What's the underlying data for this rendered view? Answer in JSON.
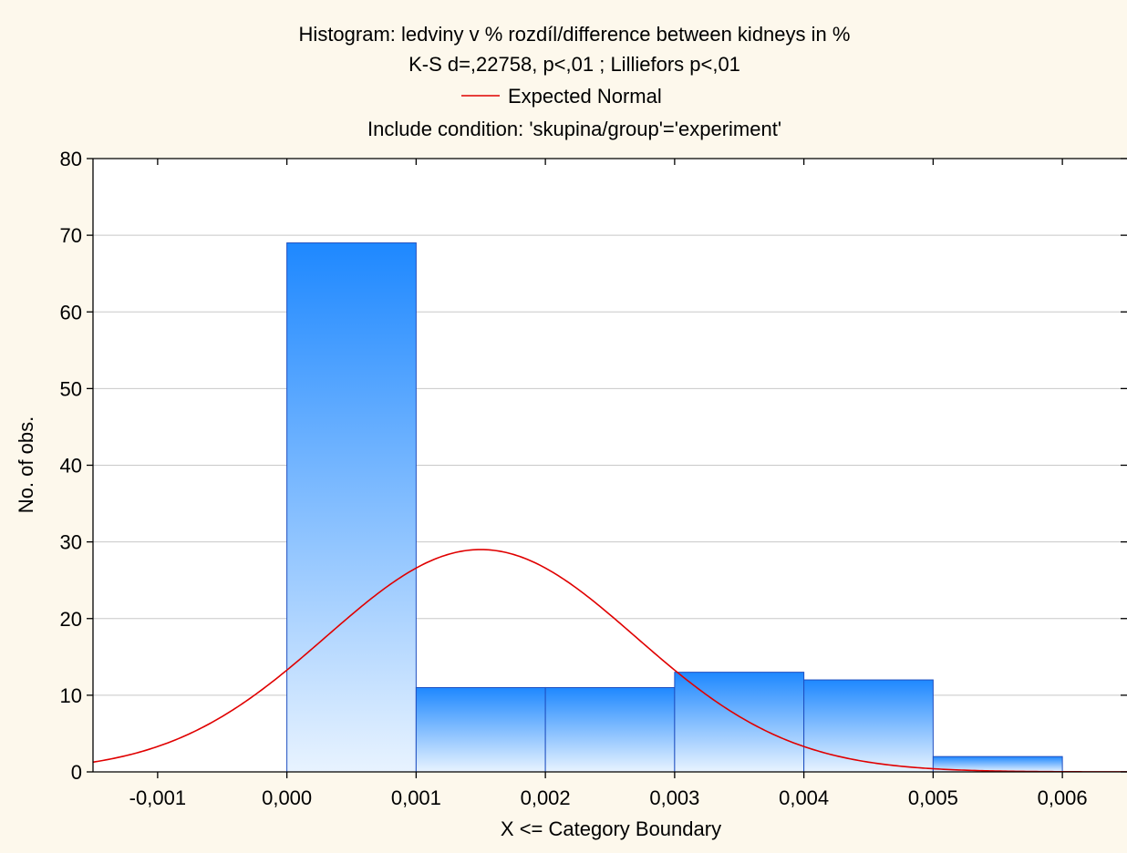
{
  "colors": {
    "background": "#fdf8ec",
    "plot_background": "#ffffff",
    "bar_top": "#1e88ff",
    "bar_bottom": "#e8f3ff",
    "bar_stroke": "#1f4fc0",
    "normal_curve": "#e00000",
    "grid": "#c8c8c8"
  },
  "chart_data": {
    "type": "bar",
    "title_lines": [
      "Histogram: ledviny v % rozdíl/difference between kidneys in %",
      "K-S d=,22758, p<,01 ; Lilliefors p<,01"
    ],
    "legend_label": "Expected Normal",
    "condition": "Include condition: 'skupina/group'='experiment'",
    "xlabel": "X <= Category Boundary",
    "ylabel": "No. of obs.",
    "xlim": [
      -0.0015,
      0.0065
    ],
    "ylim": [
      0,
      80
    ],
    "x_ticks": [
      -0.001,
      0.0,
      0.001,
      0.002,
      0.003,
      0.004,
      0.005,
      0.006
    ],
    "x_tick_labels": [
      "-0,001",
      "0,000",
      "0,001",
      "0,002",
      "0,003",
      "0,004",
      "0,005",
      "0,006"
    ],
    "y_ticks": [
      0,
      10,
      20,
      30,
      40,
      50,
      60,
      70,
      80
    ],
    "y_tick_labels": [
      "0",
      "10",
      "20",
      "30",
      "40",
      "50",
      "60",
      "70",
      "80"
    ],
    "grid": "horizontal",
    "bins": [
      {
        "from": 0.0,
        "to": 0.001,
        "count": 69
      },
      {
        "from": 0.001,
        "to": 0.002,
        "count": 11
      },
      {
        "from": 0.002,
        "to": 0.003,
        "count": 11
      },
      {
        "from": 0.003,
        "to": 0.004,
        "count": 13
      },
      {
        "from": 0.004,
        "to": 0.005,
        "count": 12
      },
      {
        "from": 0.005,
        "to": 0.006,
        "count": 2
      }
    ],
    "normal_curve": {
      "mean": 0.0015,
      "sd": 0.0012,
      "peak": 29
    }
  }
}
